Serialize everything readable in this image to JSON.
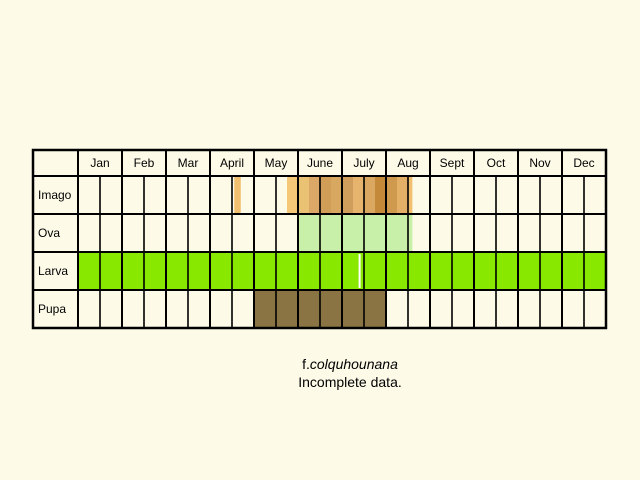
{
  "chart_data": {
    "type": "table",
    "title": "",
    "months": [
      "Jan",
      "Feb",
      "Mar",
      "April",
      "May",
      "June",
      "July",
      "Aug",
      "Sept",
      "Oct",
      "Nov",
      "Dec"
    ],
    "subdivisions_per_month": 2,
    "rows": [
      {
        "stage": "Imago",
        "segments": [
          {
            "start": 7.1,
            "end": 7.4,
            "color": "#f0c070"
          },
          {
            "start": 9.5,
            "end": 10.0,
            "color": "#f5c878"
          },
          {
            "start": 10.0,
            "end": 10.5,
            "color": "#eac274"
          },
          {
            "start": 10.5,
            "end": 11.0,
            "color": "#dca868"
          },
          {
            "start": 11.0,
            "end": 11.5,
            "color": "#d19e58"
          },
          {
            "start": 11.5,
            "end": 12.0,
            "color": "#d8a860"
          },
          {
            "start": 12.0,
            "end": 12.5,
            "color": "#cf9e5c"
          },
          {
            "start": 12.5,
            "end": 13.0,
            "color": "#e6b46c"
          },
          {
            "start": 13.0,
            "end": 13.5,
            "color": "#dba862"
          },
          {
            "start": 13.5,
            "end": 14.0,
            "color": "#c48a3a"
          },
          {
            "start": 14.0,
            "end": 14.5,
            "color": "#d09a4e"
          },
          {
            "start": 14.5,
            "end": 15.0,
            "color": "#e4b068"
          },
          {
            "start": 15.0,
            "end": 15.2,
            "color": "#f0c070"
          }
        ]
      },
      {
        "stage": "Ova",
        "segments": [
          {
            "start": 10.0,
            "end": 15.2,
            "color": "#c8f0a8"
          }
        ]
      },
      {
        "stage": "Larva",
        "segments": [
          {
            "start": 0,
            "end": 24,
            "color": "#88e800"
          }
        ],
        "marks": [
          {
            "at": 12.8,
            "color": "#ffffff"
          }
        ]
      },
      {
        "stage": "Pupa",
        "segments": [
          {
            "start": 8,
            "end": 14,
            "color": "#8a7444"
          }
        ]
      }
    ]
  },
  "caption": {
    "prefix": "f.",
    "name": "colquhounana",
    "note": "Incomplete data."
  }
}
